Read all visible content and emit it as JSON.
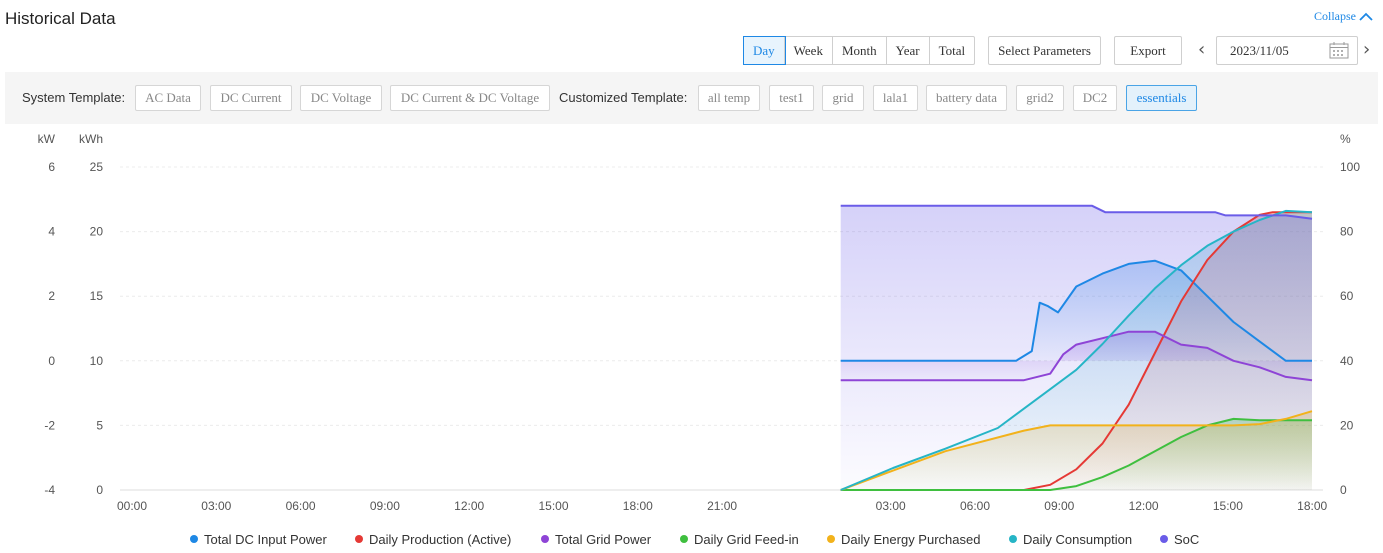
{
  "page": {
    "title": "Historical Data",
    "collapse_label": "Collapse"
  },
  "toolbar": {
    "periods": [
      "Day",
      "Week",
      "Month",
      "Year",
      "Total"
    ],
    "active_period": "Day",
    "select_params_label": "Select Parameters",
    "export_label": "Export",
    "date": "2023/11/05"
  },
  "templates": {
    "system_label": "System Template:",
    "system": [
      "AC Data",
      "DC Current",
      "DC Voltage",
      "DC Current & DC Voltage"
    ],
    "custom_label": "Customized Template:",
    "custom": [
      "all temp",
      "test1",
      "grid",
      "lala1",
      "battery data",
      "grid2",
      "DC2",
      "essentials"
    ],
    "active": "essentials"
  },
  "chart_data": {
    "type": "line",
    "axes": {
      "left_kw": {
        "label": "kW",
        "ticks": [
          "6",
          "4",
          "2",
          "0",
          "-2",
          "-4"
        ],
        "range": [
          -4,
          6
        ]
      },
      "left_kwh": {
        "label": "kWh",
        "ticks": [
          "25",
          "20",
          "15",
          "10",
          "5",
          "0"
        ],
        "range": [
          0,
          25
        ]
      },
      "right_pct": {
        "label": "%",
        "ticks": [
          "100",
          "80",
          "60",
          "40",
          "20",
          "0"
        ],
        "range": [
          0,
          100
        ]
      },
      "x_ticks": [
        "00:00",
        "03:00",
        "06:00",
        "09:00",
        "12:00",
        "15:00",
        "18:00",
        "21:00",
        "",
        "03:00",
        "06:00",
        "09:00",
        "12:00",
        "15:00",
        "18:00"
      ]
    },
    "grid": true,
    "legend_position": "bottom",
    "series": [
      {
        "name": "Total DC Input Power",
        "color": "#1e88e5",
        "axis": "kW",
        "x": [
          0,
          6.7,
          7.3,
          7.6,
          7.9,
          8.3,
          9,
          10,
          11,
          12,
          13,
          14,
          15,
          16,
          17,
          18
        ],
        "values": [
          0,
          0,
          0.3,
          1.8,
          1.7,
          1.5,
          2.3,
          2.7,
          3.0,
          3.1,
          2.8,
          2.0,
          1.2,
          0.6,
          0.0,
          0.0
        ]
      },
      {
        "name": "Daily Production (Active)",
        "color": "#e53935",
        "axis": "kWh",
        "x": [
          0,
          7,
          8,
          9,
          10,
          11,
          12,
          13,
          14,
          15,
          16,
          16.5,
          18
        ],
        "values": [
          0,
          0,
          0.4,
          1.6,
          3.6,
          6.6,
          10.6,
          14.6,
          17.8,
          20.0,
          21.3,
          21.5,
          21.5
        ]
      },
      {
        "name": "Total Grid Power",
        "color": "#8e44d6",
        "axis": "kW",
        "x": [
          0,
          7,
          8,
          8.5,
          9,
          10,
          11,
          12,
          13,
          14,
          15,
          16,
          17,
          18
        ],
        "values": [
          -0.6,
          -0.6,
          -0.4,
          0.2,
          0.5,
          0.7,
          0.9,
          0.9,
          0.5,
          0.4,
          0.0,
          -0.2,
          -0.5,
          -0.6
        ]
      },
      {
        "name": "Daily Grid Feed-in",
        "color": "#3fbf3f",
        "axis": "kWh",
        "x": [
          0,
          8,
          9,
          10,
          11,
          12,
          13,
          14,
          15,
          16,
          17,
          18
        ],
        "values": [
          0,
          0,
          0.3,
          1.0,
          1.9,
          3.0,
          4.1,
          5.0,
          5.5,
          5.4,
          5.4,
          5.4
        ]
      },
      {
        "name": "Daily Energy Purchased",
        "color": "#f2b21b",
        "axis": "kWh",
        "x": [
          0,
          4,
          7,
          8,
          9,
          15,
          16,
          17,
          18
        ],
        "values": [
          0,
          3.0,
          4.6,
          5.0,
          5.0,
          5.0,
          5.1,
          5.5,
          6.1
        ]
      },
      {
        "name": "Daily Consumption",
        "color": "#26b5c6",
        "axis": "kWh",
        "x": [
          0,
          2,
          4,
          6,
          8,
          9,
          10,
          11,
          12,
          13,
          14,
          15,
          16,
          17,
          18
        ],
        "values": [
          0,
          1.7,
          3.2,
          4.8,
          7.8,
          9.3,
          11.3,
          13.5,
          15.6,
          17.4,
          18.9,
          20.0,
          20.9,
          21.6,
          21.5
        ]
      },
      {
        "name": "SoC",
        "color": "#6a5ce8",
        "axis": "%",
        "x": [
          0,
          9.6,
          10.1,
          14.3,
          14.7,
          17,
          18
        ],
        "values": [
          88,
          88,
          86,
          86,
          85,
          85,
          84
        ]
      }
    ]
  }
}
